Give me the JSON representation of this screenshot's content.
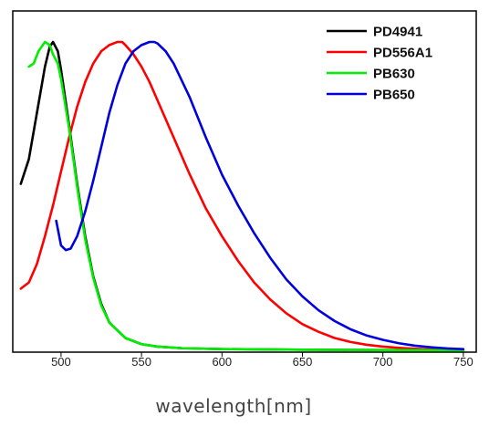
{
  "chart_data": {
    "type": "line",
    "title": "",
    "xlabel": "wavelength[nm]",
    "ylabel": "",
    "xlim": [
      470,
      758
    ],
    "ylim": [
      0,
      1.02
    ],
    "xticks": [
      500,
      550,
      600,
      650,
      700,
      750
    ],
    "tick_labels": [
      "500",
      "550",
      "600",
      "650",
      "700",
      "750"
    ],
    "grid": false,
    "legend_position": "top-right",
    "series": [
      {
        "name": "PD4941",
        "color": "#000000",
        "x": [
          475,
          480,
          485,
          490,
          493,
          495,
          498,
          500,
          505,
          510,
          515,
          520,
          525,
          530,
          540,
          550,
          560,
          575,
          600,
          650,
          700,
          750
        ],
        "y": [
          0.54,
          0.62,
          0.77,
          0.92,
          0.985,
          1.0,
          0.97,
          0.91,
          0.73,
          0.54,
          0.37,
          0.24,
          0.15,
          0.09,
          0.04,
          0.02,
          0.012,
          0.007,
          0.004,
          0.002,
          0.001,
          0.0
        ]
      },
      {
        "name": "PD556A1",
        "color": "#ff0000",
        "x": [
          475,
          480,
          485,
          490,
          495,
          500,
          505,
          510,
          515,
          520,
          525,
          530,
          535,
          538,
          540,
          545,
          550,
          555,
          560,
          570,
          580,
          590,
          600,
          610,
          620,
          630,
          640,
          650,
          660,
          670,
          680,
          690,
          700,
          710,
          720,
          730,
          740,
          750
        ],
        "y": [
          0.2,
          0.22,
          0.28,
          0.37,
          0.47,
          0.58,
          0.69,
          0.79,
          0.87,
          0.93,
          0.97,
          0.99,
          1.0,
          1.0,
          0.99,
          0.96,
          0.92,
          0.87,
          0.81,
          0.69,
          0.57,
          0.46,
          0.37,
          0.29,
          0.22,
          0.165,
          0.12,
          0.085,
          0.06,
          0.04,
          0.027,
          0.018,
          0.012,
          0.008,
          0.005,
          0.003,
          0.002,
          0.001
        ]
      },
      {
        "name": "PB630",
        "color": "#00ee00",
        "x": [
          480,
          483,
          486,
          490,
          493,
          495,
          498,
          500,
          505,
          510,
          515,
          520,
          525,
          530,
          540,
          550,
          560,
          575,
          600,
          650,
          700,
          750
        ],
        "y": [
          0.92,
          0.93,
          0.97,
          1.0,
          0.99,
          0.96,
          0.93,
          0.88,
          0.72,
          0.53,
          0.36,
          0.235,
          0.145,
          0.09,
          0.04,
          0.02,
          0.012,
          0.007,
          0.004,
          0.002,
          0.001,
          0.0
        ]
      },
      {
        "name": "PB650",
        "color": "#0000dd",
        "x": [
          497,
          500,
          503,
          506,
          510,
          515,
          520,
          525,
          530,
          535,
          540,
          545,
          550,
          555,
          558,
          560,
          565,
          570,
          580,
          590,
          600,
          610,
          620,
          630,
          640,
          650,
          660,
          670,
          680,
          690,
          700,
          710,
          720,
          730,
          740,
          750
        ],
        "y": [
          0.42,
          0.34,
          0.325,
          0.33,
          0.37,
          0.45,
          0.55,
          0.66,
          0.77,
          0.86,
          0.93,
          0.97,
          0.99,
          1.0,
          1.0,
          0.995,
          0.97,
          0.93,
          0.82,
          0.69,
          0.57,
          0.47,
          0.38,
          0.3,
          0.23,
          0.175,
          0.13,
          0.095,
          0.068,
          0.048,
          0.034,
          0.023,
          0.015,
          0.01,
          0.006,
          0.004
        ]
      }
    ]
  }
}
